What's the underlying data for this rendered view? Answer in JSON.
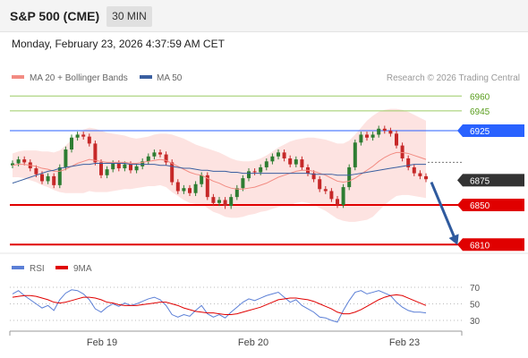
{
  "header": {
    "symbol": "S&P 500 (CME)",
    "timeframe": "30 MIN",
    "datetime": "Monday, February 23, 2026 4:37:59 AM CET"
  },
  "colors": {
    "ma20": "#f28b82",
    "ma50": "#3a5fa0",
    "bollinger_fill": "#fde3e1",
    "up": "#2e7d32",
    "down": "#c62828",
    "resistance_green": "#9ccc65",
    "resistance_blue": "#2962ff",
    "support_red": "#e00000",
    "current": "#333333",
    "arrow": "#2f5a9e",
    "rsi": "#5b7fd6",
    "rsi_ma": "#e00000"
  },
  "legend": {
    "ma20": "MA 20 + Bollinger Bands",
    "ma50": "MA 50",
    "copyright": "Research © 2026 Trading Central"
  },
  "rsi_legend": {
    "rsi": "RSI",
    "ma": "9MA"
  },
  "chart_data": {
    "type": "line",
    "x_labels": [
      "Feb 19",
      "Feb 20",
      "Feb 23"
    ],
    "ylim": [
      6800,
      6975
    ],
    "levels": [
      {
        "value": 6960,
        "label": "6960",
        "style": "resistance_green"
      },
      {
        "value": 6945,
        "label": "6945",
        "style": "resistance_green"
      },
      {
        "value": 6925,
        "label": "6925",
        "style": "resistance_blue"
      },
      {
        "value": 6875,
        "label": "6875",
        "style": "current"
      },
      {
        "value": 6850,
        "label": "6850",
        "style": "support_red"
      },
      {
        "value": 6810,
        "label": "6810",
        "style": "support_red"
      }
    ],
    "price": [
      6892,
      6896,
      6893,
      6887,
      6881,
      6874,
      6879,
      6870,
      6888,
      6906,
      6918,
      6921,
      6919,
      6912,
      6893,
      6880,
      6886,
      6892,
      6887,
      6891,
      6885,
      6889,
      6894,
      6899,
      6903,
      6901,
      6893,
      6873,
      6864,
      6867,
      6862,
      6871,
      6880,
      6858,
      6852,
      6855,
      6849,
      6858,
      6867,
      6877,
      6884,
      6883,
      6888,
      6894,
      6899,
      6903,
      6897,
      6891,
      6896,
      6888,
      6882,
      6876,
      6866,
      6864,
      6856,
      6850,
      6868,
      6888,
      6913,
      6921,
      6918,
      6921,
      6927,
      6925,
      6922,
      6910,
      6897,
      6888,
      6882,
      6879,
      6876
    ],
    "ma20": [
      6890,
      6891,
      6891,
      6890,
      6889,
      6887,
      6886,
      6884,
      6884,
      6886,
      6889,
      6892,
      6894,
      6896,
      6895,
      6894,
      6893,
      6893,
      6893,
      6893,
      6892,
      6892,
      6893,
      6894,
      6895,
      6896,
      6895,
      6892,
      6889,
      6886,
      6883,
      6881,
      6880,
      6877,
      6874,
      6872,
      6869,
      6867,
      6866,
      6866,
      6867,
      6868,
      6870,
      6872,
      6875,
      6878,
      6880,
      6882,
      6884,
      6885,
      6885,
      6884,
      6882,
      6880,
      6877,
      6874,
      6873,
      6874,
      6877,
      6881,
      6885,
      6889,
      6894,
      6898,
      6901,
      6903,
      6903,
      6902,
      6900,
      6898,
      6896
    ],
    "bb_upper": [
      6902,
      6904,
      6905,
      6905,
      6905,
      6904,
      6904,
      6903,
      6905,
      6910,
      6916,
      6922,
      6926,
      6928,
      6927,
      6925,
      6923,
      6922,
      6921,
      6920,
      6918,
      6917,
      6918,
      6919,
      6921,
      6922,
      6922,
      6921,
      6919,
      6917,
      6914,
      6911,
      6909,
      6907,
      6905,
      6903,
      6900,
      6897,
      6895,
      6894,
      6894,
      6895,
      6897,
      6900,
      6904,
      6908,
      6911,
      6914,
      6916,
      6917,
      6918,
      6918,
      6917,
      6916,
      6914,
      6912,
      6912,
      6915,
      6921,
      6928,
      6935,
      6940,
      6944,
      6946,
      6947,
      6947,
      6946,
      6944,
      6941,
      6938,
      6935
    ],
    "bb_lower": [
      6878,
      6878,
      6877,
      6875,
      6873,
      6870,
      6868,
      6865,
      6863,
      6862,
      6862,
      6862,
      6862,
      6864,
      6863,
      6863,
      6863,
      6864,
      6865,
      6866,
      6866,
      6867,
      6868,
      6869,
      6869,
      6870,
      6868,
      6863,
      6859,
      6855,
      6852,
      6851,
      6851,
      6847,
      6843,
      6841,
      6838,
      6837,
      6837,
      6838,
      6840,
      6841,
      6843,
      6844,
      6846,
      6848,
      6849,
      6850,
      6852,
      6853,
      6852,
      6850,
      6847,
      6844,
      6840,
      6836,
      6834,
      6833,
      6833,
      6834,
      6835,
      6838,
      6844,
      6850,
      6855,
      6859,
      6860,
      6860,
      6859,
      6858,
      6857
    ],
    "ma50": [
      6872,
      6874,
      6876,
      6878,
      6880,
      6882,
      6884,
      6885,
      6887,
      6888,
      6889,
      6890,
      6891,
      6891,
      6892,
      6892,
      6892,
      6892,
      6892,
      6892,
      6891,
      6891,
      6891,
      6891,
      6891,
      6890,
      6890,
      6889,
      6888,
      6887,
      6887,
      6886,
      6885,
      6885,
      6884,
      6884,
      6884,
      6883,
      6883,
      6882,
      6882,
      6882,
      6882,
      6882,
      6882,
      6882,
      6882,
      6882,
      6882,
      6882,
      6882,
      6881,
      6881,
      6881,
      6881,
      6880,
      6880,
      6880,
      6881,
      6882,
      6883,
      6884,
      6885,
      6886,
      6887,
      6888,
      6889,
      6890,
      6891,
      6891,
      6891
    ],
    "rsi": {
      "ylim": [
        20,
        80
      ],
      "ticks": [
        70,
        50,
        30
      ],
      "values": [
        62,
        66,
        60,
        55,
        50,
        45,
        48,
        42,
        55,
        63,
        67,
        66,
        62,
        55,
        44,
        40,
        46,
        50,
        47,
        51,
        48,
        50,
        53,
        56,
        58,
        55,
        48,
        37,
        34,
        37,
        35,
        42,
        48,
        38,
        34,
        37,
        33,
        40,
        46,
        52,
        56,
        54,
        57,
        60,
        62,
        64,
        58,
        52,
        55,
        48,
        44,
        40,
        34,
        33,
        30,
        28,
        42,
        54,
        64,
        66,
        62,
        64,
        66,
        63,
        60,
        52,
        46,
        42,
        40,
        40,
        39
      ],
      "ma": [
        58,
        59,
        60,
        60,
        59,
        57,
        55,
        52,
        51,
        52,
        54,
        56,
        58,
        58,
        57,
        55,
        52,
        51,
        49,
        48,
        48,
        48,
        49,
        50,
        51,
        52,
        52,
        50,
        48,
        45,
        43,
        41,
        40,
        39,
        39,
        38,
        37,
        37,
        38,
        40,
        42,
        44,
        46,
        49,
        52,
        55,
        56,
        57,
        57,
        56,
        55,
        53,
        50,
        47,
        44,
        40,
        38,
        38,
        40,
        43,
        47,
        51,
        55,
        58,
        60,
        61,
        60,
        57,
        54,
        51,
        48
      ]
    },
    "projection": {
      "from": 6873,
      "to": 6810
    }
  }
}
